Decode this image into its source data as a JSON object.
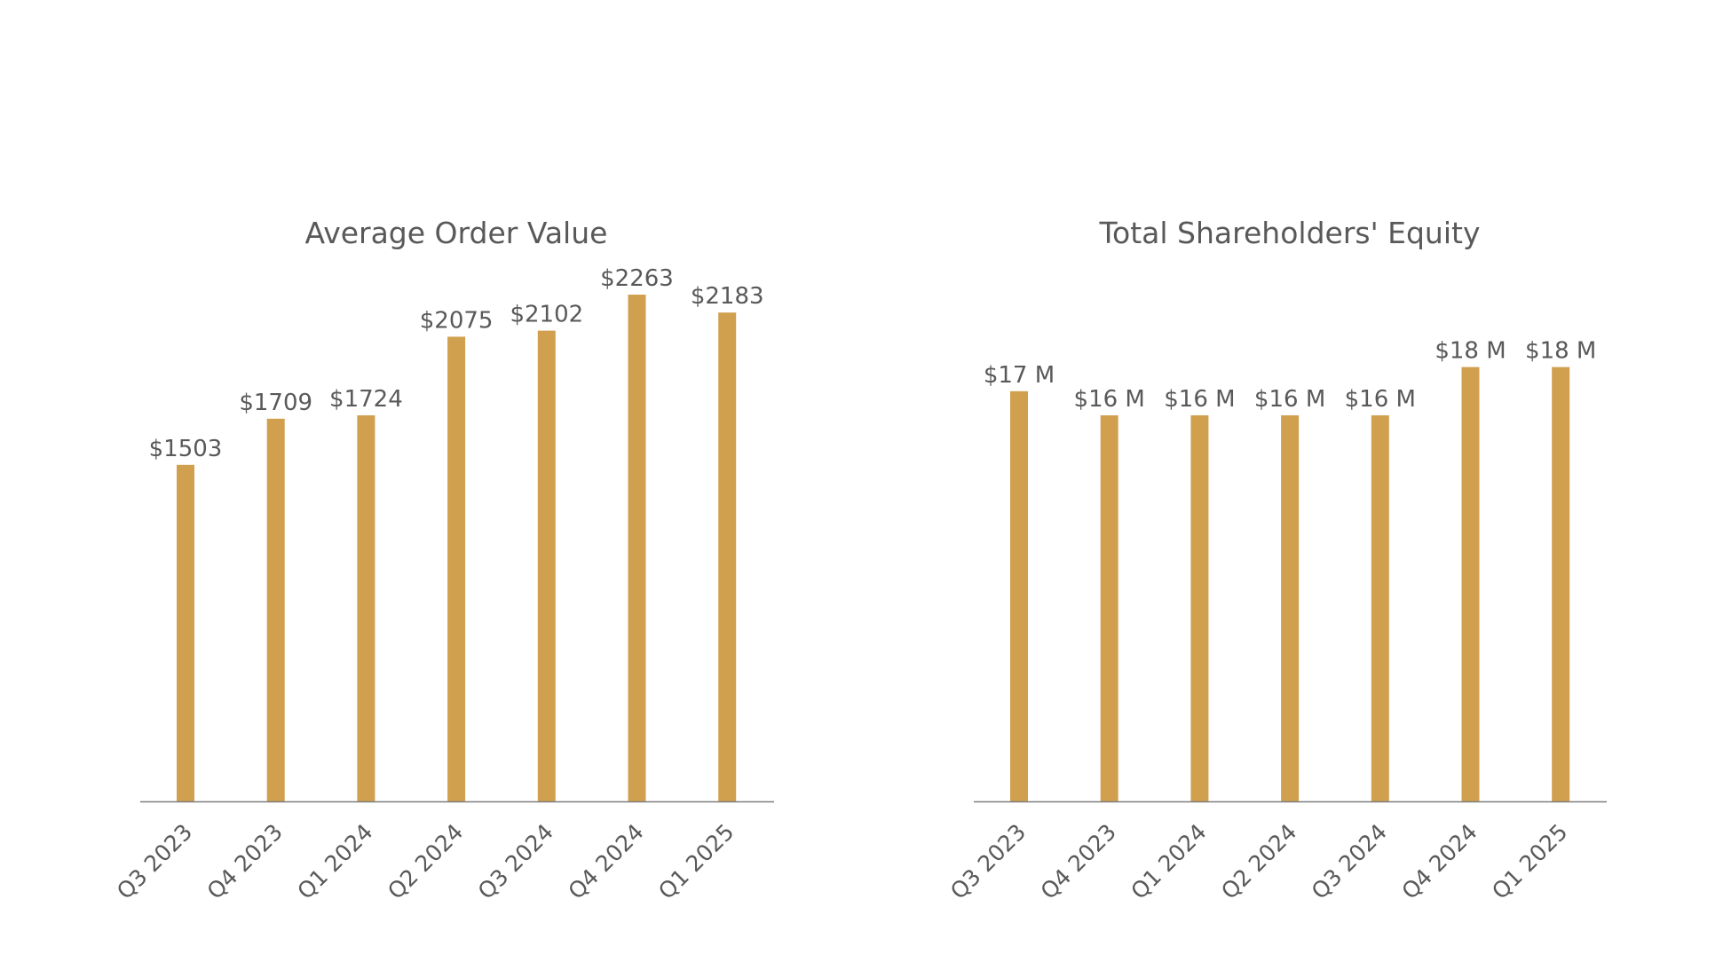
{
  "colors": {
    "bar": "#D1A04F",
    "text": "#595959",
    "axis": "#7F7F7F",
    "background": "#FFFFFF"
  },
  "chart_data": [
    {
      "type": "bar",
      "title": "Average Order Value",
      "xlabel": "",
      "ylabel": "",
      "categories": [
        "Q3 2023",
        "Q4 2023",
        "Q1 2024",
        "Q2 2024",
        "Q3 2024",
        "Q4 2024",
        "Q1 2025"
      ],
      "values": [
        1503,
        1709,
        1724,
        2075,
        2102,
        2263,
        2183
      ],
      "data_labels": [
        "$1503",
        "$1709",
        "$1724",
        "$2075",
        "$2102",
        "$2263",
        "$2183"
      ],
      "ylim": [
        0,
        2263
      ],
      "grid": false,
      "legend": "none"
    },
    {
      "type": "bar",
      "title": "Total Shareholders' Equity",
      "xlabel": "",
      "ylabel": "",
      "categories": [
        "Q3 2023",
        "Q4 2023",
        "Q1 2024",
        "Q2 2024",
        "Q3 2024",
        "Q4 2024",
        "Q1 2025"
      ],
      "values": [
        17,
        16,
        16,
        16,
        16,
        18,
        18
      ],
      "data_labels": [
        "$17 M",
        "$16 M",
        "$16 M",
        "$16 M",
        "$16 M",
        "$18 M",
        "$18 M"
      ],
      "ylim": [
        0,
        21
      ],
      "grid": false,
      "legend": "none"
    }
  ]
}
